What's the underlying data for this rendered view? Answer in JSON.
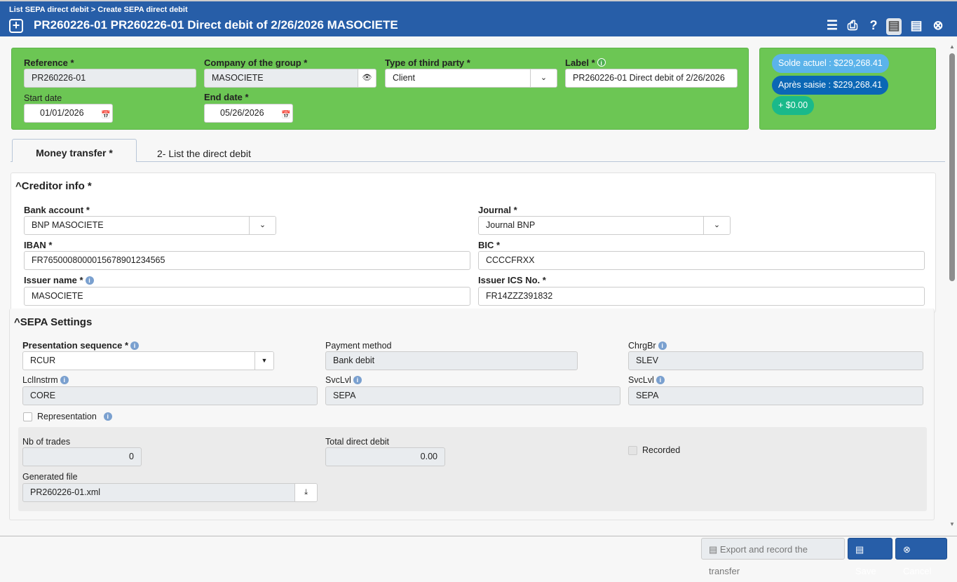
{
  "header": {
    "breadcrumb": [
      "List SEPA direct debit",
      "Create SEPA direct debit"
    ],
    "separator": ">",
    "title": "PR260226-01 PR260226-01 Direct debit of 2/26/2026 MASOCIETE",
    "icons": [
      "menu-icon",
      "print-icon",
      "help-icon",
      "save-icon",
      "save-alt-icon",
      "close-icon"
    ]
  },
  "top": {
    "reference_label": "Reference *",
    "reference": "PR260226-01",
    "company_label": "Company of the group *",
    "company": "MASOCIETE",
    "third_party_label": "Type of third party *",
    "third_party": "Client",
    "label_label": "Label *",
    "label": "PR260226-01 Direct debit of 2/26/2026",
    "start_label": "Start date",
    "start": "01/01/2026",
    "end_label": "End date *",
    "end": "05/26/2026"
  },
  "balance": {
    "current": "Solde actuel : $229,268.41",
    "after": "Après saisie : $229,268.41",
    "delta": "+ $0.00",
    "colors": {
      "current": "#5bb3ea",
      "after": "#0b67b5",
      "delta": "#1ab98a"
    }
  },
  "tabs": [
    {
      "label": "Money transfer *",
      "active": true
    },
    {
      "label": "2- List the direct debit",
      "active": false
    }
  ],
  "creditor": {
    "title": "Creditor info *",
    "bank_label": "Bank account *",
    "bank": "BNP MASOCIETE",
    "journal_label": "Journal *",
    "journal": "Journal BNP",
    "iban_label": "IBAN *",
    "iban": "FR7650008000015678901234565",
    "bic_label": "BIC *",
    "bic": "CCCCFRXX",
    "issuer_label": "Issuer name *",
    "issuer": "MASOCIETE",
    "ics_label": "Issuer ICS No. *",
    "ics": "FR14ZZZ391832"
  },
  "sepa": {
    "title": "SEPA Settings",
    "seq_label": "Presentation sequence *",
    "seq": "RCUR",
    "pm_label": "Payment method",
    "pm": "Bank debit",
    "chrg_label": "ChrgBr",
    "chrg": "SLEV",
    "lcl_label": "LclInstrm",
    "lcl": "CORE",
    "svc1_label": "SvcLvl",
    "svc1": "SEPA",
    "svc2_label": "SvcLvl",
    "svc2": "SEPA",
    "repr_label": "Representation",
    "nb_label": "Nb of trades",
    "nb": "0",
    "total_label": "Total direct debit",
    "total": "0.00",
    "recorded_label": "Recorded",
    "file_label": "Generated file",
    "file": "PR260226-01.xml"
  },
  "footer": {
    "export": "Export and record the transfer",
    "save": "Save",
    "cancel": "Cancel"
  }
}
